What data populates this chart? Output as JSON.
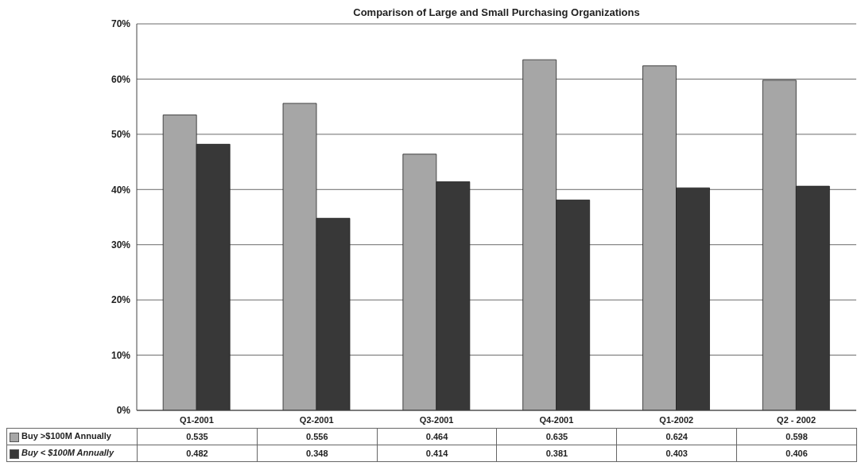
{
  "chart_data": {
    "type": "bar",
    "title": "Comparison of Large and Small Purchasing Organizations",
    "categories": [
      "Q1-2001",
      "Q2-2001",
      "Q3-2001",
      "Q4-2001",
      "Q1-2002",
      "Q2 - 2002"
    ],
    "series": [
      {
        "name": "Buy >$100M Annually",
        "color": "#a6a6a6",
        "values": [
          0.535,
          0.556,
          0.464,
          0.635,
          0.624,
          0.598
        ]
      },
      {
        "name": "Buy < $100M Annually",
        "color": "#383838",
        "values": [
          0.482,
          0.348,
          0.414,
          0.381,
          0.403,
          0.406
        ]
      }
    ],
    "ylim": [
      0,
      0.7
    ],
    "yticks": [
      {
        "value": 0,
        "label": "0%"
      },
      {
        "value": 0.1,
        "label": "10%"
      },
      {
        "value": 0.2,
        "label": "20%"
      },
      {
        "value": 0.3,
        "label": "30%"
      },
      {
        "value": 0.4,
        "label": "40%"
      },
      {
        "value": 0.5,
        "label": "50%"
      },
      {
        "value": 0.6,
        "label": "60%"
      },
      {
        "value": 0.7,
        "label": "70%"
      }
    ],
    "grid": "y",
    "legend": "bottom",
    "data_labels": true
  }
}
